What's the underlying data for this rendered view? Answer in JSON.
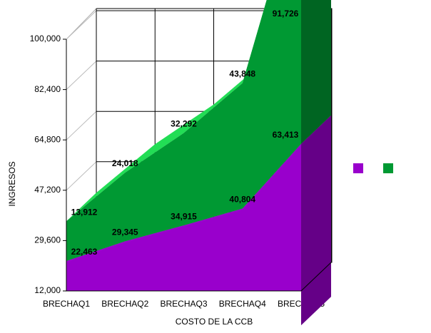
{
  "chart_data": {
    "type": "area3d-stacked",
    "xlabel": "COSTO DE LA CCB",
    "ylabel": "INGRESOS",
    "categories": [
      "BRECHAQ1",
      "BRECHAQ2",
      "BRECHAQ3",
      "BRECHAQ4",
      "BRECHAQ5"
    ],
    "series": [
      {
        "color": "#9900cc",
        "values": [
          22463,
          29345,
          34915,
          40804,
          63413
        ],
        "value_labels": [
          "22,463",
          "29,345",
          "34,915",
          "40,804",
          "63,413"
        ]
      },
      {
        "color": "#009933",
        "values": [
          13912,
          24018,
          32292,
          43848,
          91726
        ],
        "value_labels": [
          "13,912",
          "24,018",
          "32,292",
          "43,848",
          "91,726"
        ]
      }
    ],
    "ylim": [
      12000,
      100000
    ],
    "yticks": [
      {
        "value": 12000,
        "label": "12,000"
      },
      {
        "value": 29600,
        "label": "29,600"
      },
      {
        "value": 47200,
        "label": "47,200"
      },
      {
        "value": 64800,
        "label": "64,800"
      },
      {
        "value": 82400,
        "label": "82,400"
      },
      {
        "value": 100000,
        "label": "100,000"
      }
    ],
    "grid": true,
    "legend": "right"
  }
}
